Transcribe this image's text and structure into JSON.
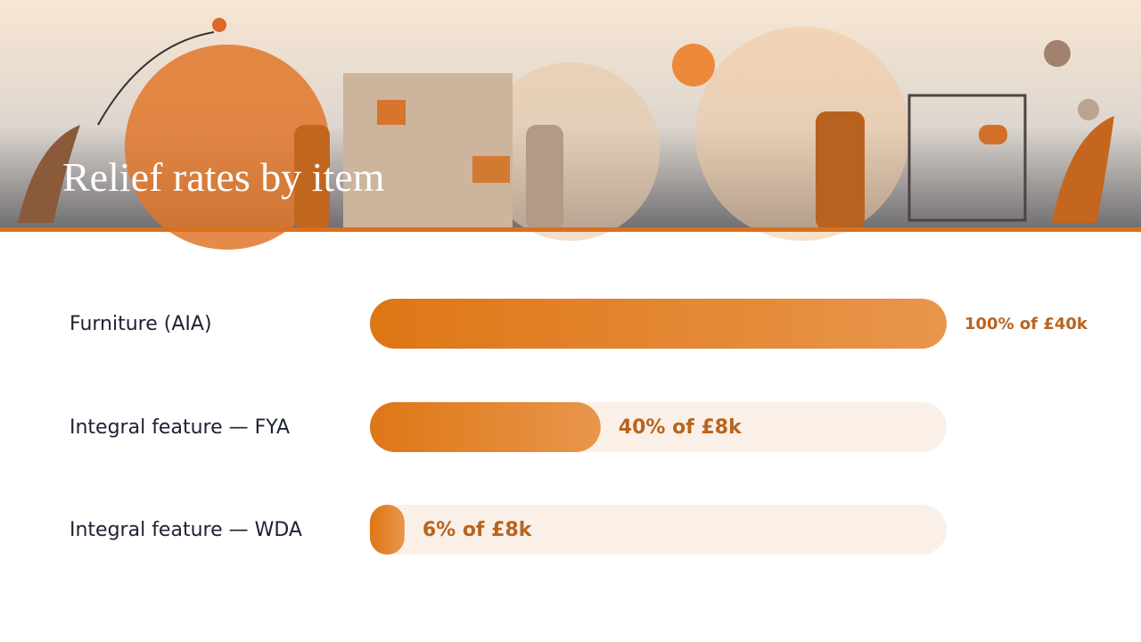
{
  "chart_data": {
    "type": "bar",
    "orientation": "horizontal",
    "title": "Relief rates by item",
    "categories": [
      "Furniture (AIA)",
      "Integral feature — FYA",
      "Integral feature — WDA"
    ],
    "values": [
      100,
      40,
      6
    ],
    "value_labels": [
      "100% of £40k",
      "40% of £8k",
      "6% of £8k"
    ],
    "color": "#e07a1f",
    "xlim": [
      0,
      100
    ]
  }
}
